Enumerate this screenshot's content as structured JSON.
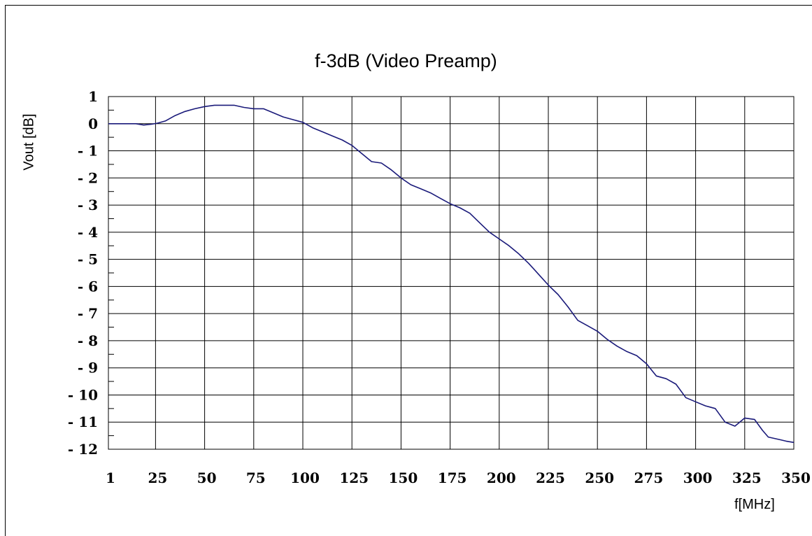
{
  "chart_data": {
    "type": "line",
    "title": "f-3dB (Video Preamp)",
    "xlabel": "f[MHz]",
    "ylabel": "Vout [dB]",
    "xlim": [
      1,
      350
    ],
    "ylim": [
      -12,
      1
    ],
    "grid": true,
    "x_ticks": [
      1,
      25,
      50,
      75,
      100,
      125,
      150,
      175,
      200,
      225,
      250,
      275,
      300,
      325,
      350
    ],
    "x_tick_labels": [
      "1",
      "25",
      "50",
      "75",
      "100",
      "125",
      "150",
      "175",
      "200",
      "225",
      "250",
      "275",
      "300",
      "325",
      "350"
    ],
    "y_ticks": [
      1,
      0,
      -1,
      -2,
      -3,
      -4,
      -5,
      -6,
      -7,
      -8,
      -9,
      -10,
      -11,
      -12
    ],
    "y_tick_labels": [
      "1",
      "0",
      "- 1",
      "- 2",
      "- 3",
      "- 4",
      "- 5",
      "- 6",
      "- 7",
      "- 8",
      "- 9",
      "- 10",
      "- 11",
      "- 12"
    ],
    "colors": {
      "line": "#1a1a7a",
      "grid": "#000000"
    },
    "series": [
      {
        "x": [
          1,
          5,
          10,
          15,
          19,
          23,
          26,
          30,
          35,
          40,
          45,
          50,
          55,
          60,
          65,
          70,
          75,
          80,
          85,
          90,
          95,
          100,
          105,
          110,
          115,
          120,
          125,
          130,
          135,
          140,
          145,
          150,
          155,
          160,
          165,
          170,
          175,
          180,
          185,
          190,
          195,
          200,
          205,
          210,
          215,
          220,
          225,
          230,
          235,
          240,
          245,
          250,
          255,
          260,
          265,
          270,
          275,
          280,
          285,
          290,
          295,
          300,
          305,
          310,
          315,
          320,
          325,
          330,
          334,
          337,
          340,
          343,
          346,
          350
        ],
        "y": [
          0,
          0,
          0,
          0,
          -0.05,
          -0.02,
          0.02,
          0.1,
          0.3,
          0.45,
          0.55,
          0.63,
          0.68,
          0.68,
          0.68,
          0.6,
          0.55,
          0.55,
          0.4,
          0.25,
          0.15,
          0.05,
          -0.15,
          -0.3,
          -0.45,
          -0.6,
          -0.8,
          -1.1,
          -1.4,
          -1.45,
          -1.7,
          -2.0,
          -2.25,
          -2.4,
          -2.55,
          -2.75,
          -2.95,
          -3.1,
          -3.3,
          -3.65,
          -4.0,
          -4.25,
          -4.5,
          -4.8,
          -5.15,
          -5.55,
          -5.95,
          -6.3,
          -6.75,
          -7.25,
          -7.45,
          -7.65,
          -7.95,
          -8.2,
          -8.4,
          -8.55,
          -8.85,
          -9.3,
          -9.4,
          -9.6,
          -10.1,
          -10.25,
          -10.4,
          -10.5,
          -11.0,
          -11.15,
          -10.85,
          -10.9,
          -11.3,
          -11.55,
          -11.6,
          -11.65,
          -11.7,
          -11.75
        ]
      }
    ]
  }
}
